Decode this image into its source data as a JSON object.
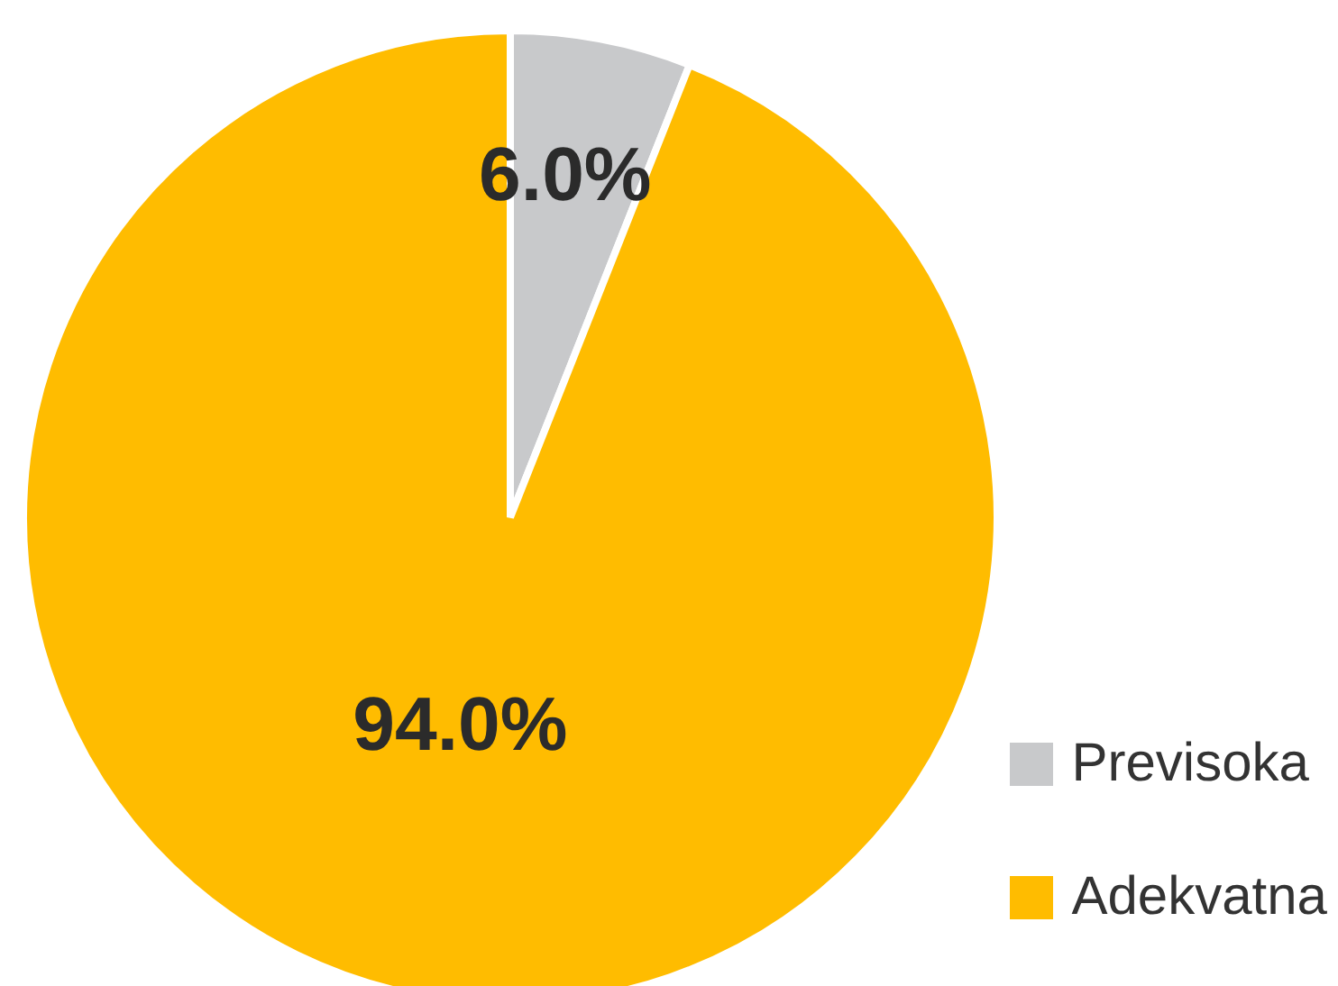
{
  "chart_data": {
    "type": "pie",
    "categories": [
      "Previsoka",
      "Adekvatna"
    ],
    "values": [
      6.0,
      94.0
    ],
    "colors": [
      "#c8c9cb",
      "#ffbc00"
    ],
    "value_labels": [
      "6.0%",
      "94.0%"
    ],
    "legend": "bottom right"
  }
}
